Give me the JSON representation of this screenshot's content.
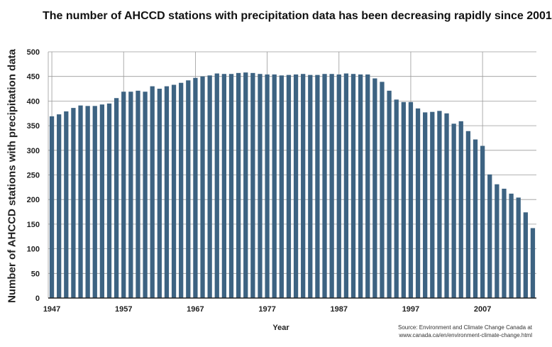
{
  "chart_data": {
    "type": "bar",
    "title": "The number of AHCCD stations with precipitation data has been decreasing rapidly since 2001",
    "xlabel": "Year",
    "ylabel": "Number of AHCCD stations with precipitation data",
    "ylim": [
      0,
      500
    ],
    "yticks": [
      0,
      50,
      100,
      150,
      200,
      250,
      300,
      350,
      400,
      450,
      500
    ],
    "xticks": [
      "1947",
      "1957",
      "1967",
      "1977",
      "1987",
      "1997",
      "2007"
    ],
    "grid": true,
    "color": "#3d6382",
    "categories": [
      1947,
      1948,
      1949,
      1950,
      1951,
      1952,
      1953,
      1954,
      1955,
      1956,
      1957,
      1958,
      1959,
      1960,
      1961,
      1962,
      1963,
      1964,
      1965,
      1966,
      1967,
      1968,
      1969,
      1970,
      1971,
      1972,
      1973,
      1974,
      1975,
      1976,
      1977,
      1978,
      1979,
      1980,
      1981,
      1982,
      1983,
      1984,
      1985,
      1986,
      1987,
      1988,
      1989,
      1990,
      1991,
      1992,
      1993,
      1994,
      1995,
      1996,
      1997,
      1998,
      1999,
      2000,
      2001,
      2002,
      2003,
      2004,
      2005,
      2006,
      2007,
      2008,
      2009,
      2010,
      2011,
      2012,
      2013,
      2014
    ],
    "values": [
      369,
      373,
      379,
      386,
      391,
      390,
      390,
      393,
      395,
      406,
      419,
      419,
      421,
      419,
      430,
      425,
      430,
      433,
      437,
      442,
      447,
      450,
      452,
      456,
      455,
      455,
      457,
      458,
      457,
      455,
      454,
      454,
      452,
      453,
      454,
      455,
      453,
      453,
      455,
      455,
      454,
      456,
      455,
      454,
      454,
      446,
      439,
      421,
      403,
      398,
      398,
      385,
      377,
      378,
      380,
      375,
      354,
      359,
      339,
      322,
      309,
      251,
      231,
      222,
      212,
      204,
      174,
      142
    ]
  },
  "source": {
    "line1": "Source: Environment and Climate Change Canada at",
    "line2": "www.canada.ca/en/environment-climate-change.html"
  }
}
